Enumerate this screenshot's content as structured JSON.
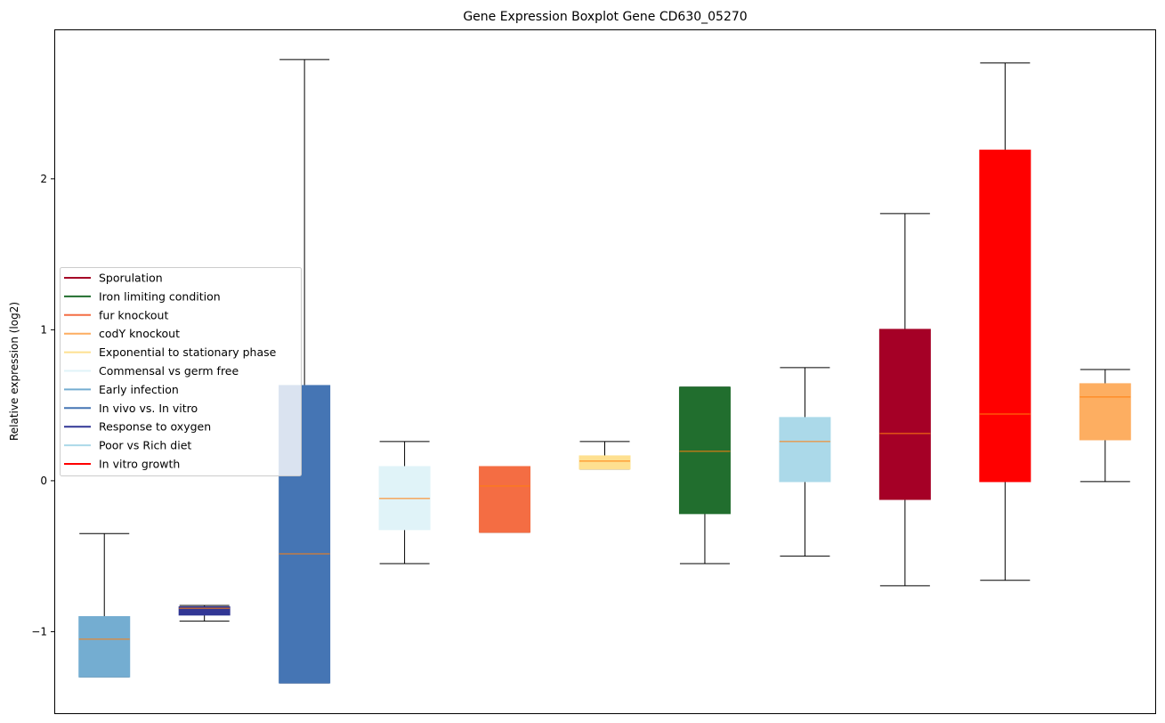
{
  "chart_data": {
    "type": "boxplot",
    "title": "Gene Expression Boxplot Gene CD630_05270",
    "xlabel": "",
    "ylabel": "Relative expression (log2)",
    "ylim": [
      -1.54,
      2.99
    ],
    "yticks": [
      -1,
      0,
      1,
      2
    ],
    "ytick_labels": [
      "−1",
      "0",
      "1",
      "2"
    ],
    "grid": false,
    "legend_placement": "center-left",
    "median_color": "#ff7f0e",
    "boxes": [
      {
        "name": "Early infection",
        "color": "#74add1",
        "whislo": -1.3,
        "q1": -1.3,
        "med": -1.05,
        "q3": -0.9,
        "whishi": -0.35
      },
      {
        "name": "Response to oxygen",
        "color": "#313695",
        "whislo": -0.93,
        "q1": -0.89,
        "med": -0.845,
        "q3": -0.835,
        "whishi": -0.826
      },
      {
        "name": "In vivo vs. In vitro",
        "color": "#4575b4",
        "whislo": -1.34,
        "q1": -1.34,
        "med": -0.484,
        "q3": 0.631,
        "whishi": 2.79
      },
      {
        "name": "Commensal vs germ free",
        "color": "#e0f3f8",
        "whislo": -0.549,
        "q1": -0.324,
        "med": -0.118,
        "q3": 0.094,
        "whishi": 0.26
      },
      {
        "name": "fur knockout",
        "color": "#f46d43",
        "whislo": -0.342,
        "q1": -0.342,
        "med": -0.035,
        "q3": 0.094,
        "whishi": 0.094
      },
      {
        "name": "Exponential to stationary phase",
        "color": "#fee090",
        "whislo": 0.077,
        "q1": 0.077,
        "med": 0.13,
        "q3": 0.165,
        "whishi": 0.26
      },
      {
        "name": "Iron limiting condition",
        "color": "#216e2e",
        "whislo": -0.549,
        "q1": -0.218,
        "med": 0.195,
        "q3": 0.62,
        "whishi": 0.62
      },
      {
        "name": "Poor vs Rich diet",
        "color": "#abd9e9",
        "whislo": -0.5,
        "q1": -0.006,
        "med": 0.26,
        "q3": 0.419,
        "whishi": 0.749
      },
      {
        "name": "Sporulation",
        "color": "#a50026",
        "whislo": -0.696,
        "q1": -0.124,
        "med": 0.313,
        "q3": 1.003,
        "whishi": 1.77
      },
      {
        "name": "In vitro growth",
        "color": "#ff0000",
        "whislo": -0.66,
        "q1": -0.006,
        "med": 0.442,
        "q3": 2.19,
        "whishi": 2.767
      },
      {
        "name": "codY knockout",
        "color": "#fdae61",
        "whislo": -0.006,
        "q1": 0.271,
        "med": 0.555,
        "q3": 0.643,
        "whishi": 0.737
      }
    ],
    "legend": [
      {
        "label": "Sporulation",
        "color": "#a50026"
      },
      {
        "label": "Iron limiting condition",
        "color": "#216e2e"
      },
      {
        "label": "fur knockout",
        "color": "#f46d43"
      },
      {
        "label": "codY knockout",
        "color": "#fdae61"
      },
      {
        "label": "Exponential to stationary phase",
        "color": "#fee090"
      },
      {
        "label": "Commensal vs germ free",
        "color": "#e0f3f8"
      },
      {
        "label": "Early infection",
        "color": "#74add1"
      },
      {
        "label": "In vivo vs. In vitro",
        "color": "#4575b4"
      },
      {
        "label": "Response to oxygen",
        "color": "#313695"
      },
      {
        "label": "Poor vs Rich diet",
        "color": "#abd9e9"
      },
      {
        "label": "In vitro growth",
        "color": "#ff0000"
      }
    ]
  }
}
